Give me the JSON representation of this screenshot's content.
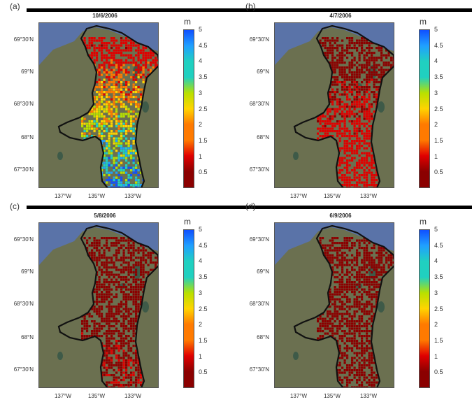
{
  "panels": [
    {
      "label": "(a)",
      "title": "10/6/2006",
      "intensity": 0.95
    },
    {
      "label": "(b)",
      "title": "4/7/2006",
      "intensity": 0.35
    },
    {
      "label": "(c)",
      "title": "5/8/2006",
      "intensity": 0.2
    },
    {
      "label": "(d)",
      "title": "6/9/2006",
      "intensity": 0.05
    }
  ],
  "lat_ticks": [
    "69°30'N",
    "69°N",
    "68°30'N",
    "68°N",
    "67°30'N"
  ],
  "lon_ticks": [
    "137°W",
    "135°W",
    "133°W"
  ],
  "colorbar": {
    "unit": "m",
    "ticks": [
      "5",
      "4.5",
      "4",
      "3.5",
      "3",
      "2.5",
      "2",
      "1.5",
      "1",
      "0.5"
    ],
    "min": 0,
    "max": 5,
    "colormap": "jet"
  },
  "colors": {
    "water": "#5a73a8",
    "land": "#6b7050",
    "outline": "#111111"
  }
}
